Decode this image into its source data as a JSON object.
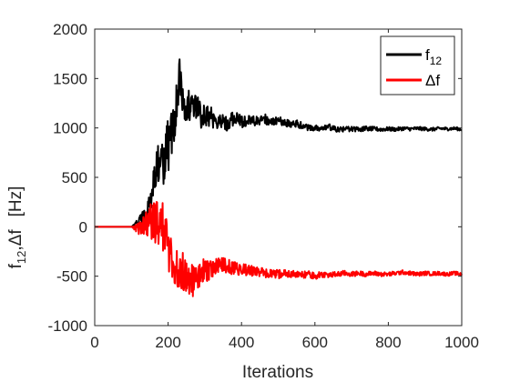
{
  "chart_data": {
    "type": "line",
    "xlabel": "Iterations",
    "ylabel": {
      "line1_main": "f",
      "line1_sub": "12",
      "line1_rest": ",Δf",
      "unit": "[Hz]"
    },
    "xlim": [
      0,
      1000
    ],
    "ylim": [
      -1000,
      2000
    ],
    "xticks": [
      0,
      200,
      400,
      600,
      800,
      1000
    ],
    "yticks": [
      -1000,
      -500,
      0,
      500,
      1000,
      1500,
      2000
    ],
    "grid": false,
    "legend_position": "top-right",
    "series": [
      {
        "name": "f12",
        "legend_main": "f",
        "legend_sub": "12",
        "color": "#000000",
        "points": [
          [
            0,
            0
          ],
          [
            100,
            0
          ],
          [
            110,
            20
          ],
          [
            120,
            60
          ],
          [
            130,
            80
          ],
          [
            140,
            120
          ],
          [
            150,
            250
          ],
          [
            160,
            420
          ],
          [
            170,
            600
          ],
          [
            180,
            700
          ],
          [
            190,
            650
          ],
          [
            200,
            820
          ],
          [
            210,
            950
          ],
          [
            220,
            1150
          ],
          [
            230,
            1550
          ],
          [
            240,
            1300
          ],
          [
            250,
            1250
          ],
          [
            260,
            1200
          ],
          [
            270,
            1150
          ],
          [
            280,
            1250
          ],
          [
            290,
            1100
          ],
          [
            300,
            1150
          ],
          [
            320,
            1100
          ],
          [
            340,
            1080
          ],
          [
            360,
            1050
          ],
          [
            380,
            1100
          ],
          [
            400,
            1060
          ],
          [
            420,
            1080
          ],
          [
            440,
            1060
          ],
          [
            460,
            1100
          ],
          [
            480,
            1050
          ],
          [
            500,
            1080
          ],
          [
            520,
            1040
          ],
          [
            540,
            1050
          ],
          [
            560,
            1030
          ],
          [
            580,
            1010
          ],
          [
            600,
            1000
          ],
          [
            620,
            990
          ],
          [
            640,
            1010
          ],
          [
            660,
            980
          ],
          [
            680,
            990
          ],
          [
            700,
            990
          ],
          [
            720,
            985
          ],
          [
            740,
            995
          ],
          [
            760,
            990
          ],
          [
            780,
            985
          ],
          [
            800,
            990
          ],
          [
            820,
            985
          ],
          [
            840,
            995
          ],
          [
            860,
            990
          ],
          [
            880,
            995
          ],
          [
            900,
            990
          ],
          [
            920,
            985
          ],
          [
            940,
            995
          ],
          [
            960,
            990
          ],
          [
            980,
            995
          ],
          [
            1000,
            985
          ]
        ],
        "amplitude": [
          [
            0,
            0
          ],
          [
            100,
            0
          ],
          [
            120,
            40
          ],
          [
            150,
            130
          ],
          [
            180,
            220
          ],
          [
            200,
            300
          ],
          [
            230,
            220
          ],
          [
            260,
            160
          ],
          [
            300,
            120
          ],
          [
            360,
            80
          ],
          [
            420,
            60
          ],
          [
            480,
            50
          ],
          [
            540,
            40
          ],
          [
            600,
            32
          ],
          [
            700,
            25
          ],
          [
            800,
            20
          ],
          [
            1000,
            16
          ]
        ]
      },
      {
        "name": "Δf",
        "legend_main": "Δf",
        "legend_sub": "",
        "color": "#ff0000",
        "points": [
          [
            0,
            0
          ],
          [
            100,
            0
          ],
          [
            110,
            -10
          ],
          [
            120,
            -20
          ],
          [
            130,
            0
          ],
          [
            140,
            30
          ],
          [
            150,
            80
          ],
          [
            160,
            50
          ],
          [
            170,
            20
          ],
          [
            180,
            60
          ],
          [
            190,
            -50
          ],
          [
            200,
            -180
          ],
          [
            210,
            -330
          ],
          [
            220,
            -420
          ],
          [
            230,
            -480
          ],
          [
            240,
            -450
          ],
          [
            250,
            -520
          ],
          [
            260,
            -500
          ],
          [
            270,
            -560
          ],
          [
            280,
            -520
          ],
          [
            290,
            -450
          ],
          [
            300,
            -450
          ],
          [
            320,
            -420
          ],
          [
            340,
            -380
          ],
          [
            360,
            -400
          ],
          [
            380,
            -420
          ],
          [
            400,
            -430
          ],
          [
            420,
            -440
          ],
          [
            440,
            -450
          ],
          [
            460,
            -470
          ],
          [
            480,
            -480
          ],
          [
            500,
            -480
          ],
          [
            520,
            -470
          ],
          [
            540,
            -480
          ],
          [
            560,
            -490
          ],
          [
            580,
            -480
          ],
          [
            600,
            -500
          ],
          [
            620,
            -480
          ],
          [
            640,
            -490
          ],
          [
            660,
            -480
          ],
          [
            680,
            -470
          ],
          [
            700,
            -480
          ],
          [
            720,
            -470
          ],
          [
            740,
            -480
          ],
          [
            760,
            -470
          ],
          [
            780,
            -480
          ],
          [
            800,
            -480
          ],
          [
            820,
            -470
          ],
          [
            840,
            -460
          ],
          [
            860,
            -470
          ],
          [
            880,
            -480
          ],
          [
            900,
            -470
          ],
          [
            920,
            -475
          ],
          [
            940,
            -470
          ],
          [
            960,
            -480
          ],
          [
            980,
            -470
          ],
          [
            1000,
            -480
          ]
        ],
        "amplitude": [
          [
            0,
            0
          ],
          [
            100,
            0
          ],
          [
            120,
            60
          ],
          [
            150,
            180
          ],
          [
            180,
            260
          ],
          [
            200,
            250
          ],
          [
            230,
            210
          ],
          [
            260,
            180
          ],
          [
            290,
            130
          ],
          [
            340,
            80
          ],
          [
            400,
            60
          ],
          [
            460,
            50
          ],
          [
            520,
            40
          ],
          [
            600,
            32
          ],
          [
            700,
            25
          ],
          [
            800,
            22
          ],
          [
            1000,
            18
          ]
        ]
      }
    ]
  }
}
